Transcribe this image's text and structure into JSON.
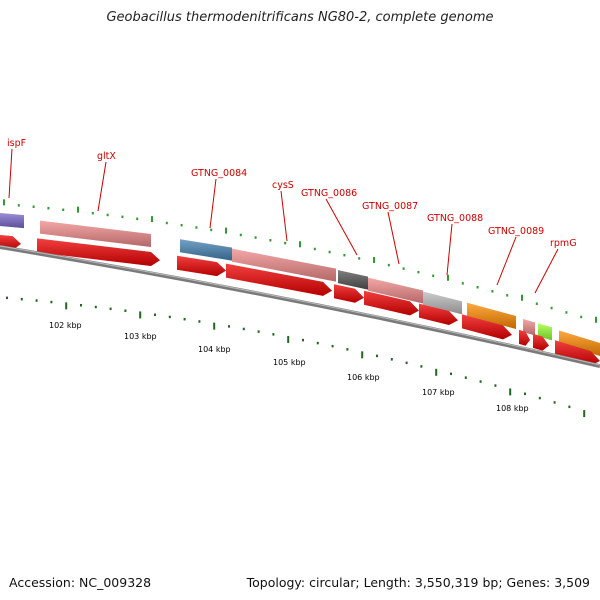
{
  "title": "Geobacillus thermodenitrificans NG80-2, complete genome",
  "footer": {
    "accession": "Accession: NC_009328",
    "summary": "Topology: circular; Length: 3,550,319 bp; Genes: 3,509"
  },
  "colors": {
    "gene_label": "#cc0000",
    "label_line": "#cc0000",
    "backbone": "#888888",
    "cds_arrow": "#ee0000",
    "tick_green": "#339933",
    "scale_tick": "#226622",
    "scale_label": "#000000"
  },
  "gene_labels": [
    {
      "text": "ispF"
    },
    {
      "text": "gltX"
    },
    {
      "text": "GTNG_0084"
    },
    {
      "text": "cysS"
    },
    {
      "text": "GTNG_0086"
    },
    {
      "text": "GTNG_0087"
    },
    {
      "text": "GTNG_0088"
    },
    {
      "text": "GTNG_0089"
    },
    {
      "text": "rpmG"
    }
  ],
  "gene_blocks": [
    {
      "color": "#7b68cc"
    },
    {
      "color": "#f08a8a"
    },
    {
      "color": "#4682b4"
    },
    {
      "color": "#f08a8a"
    },
    {
      "color": "#555555"
    },
    {
      "color": "#f08a8a"
    },
    {
      "color": "#bbbbbb"
    },
    {
      "color": "#ff8c00"
    },
    {
      "color": "#f08a8a"
    },
    {
      "color": "#99ff33"
    },
    {
      "color": "#ff8c00"
    }
  ],
  "scale_labels": [
    {
      "text": "102 kbp"
    },
    {
      "text": "103 kbp"
    },
    {
      "text": "104 kbp"
    },
    {
      "text": "105 kbp"
    },
    {
      "text": "106 kbp"
    },
    {
      "text": "107 kbp"
    },
    {
      "text": "108 kbp"
    }
  ]
}
